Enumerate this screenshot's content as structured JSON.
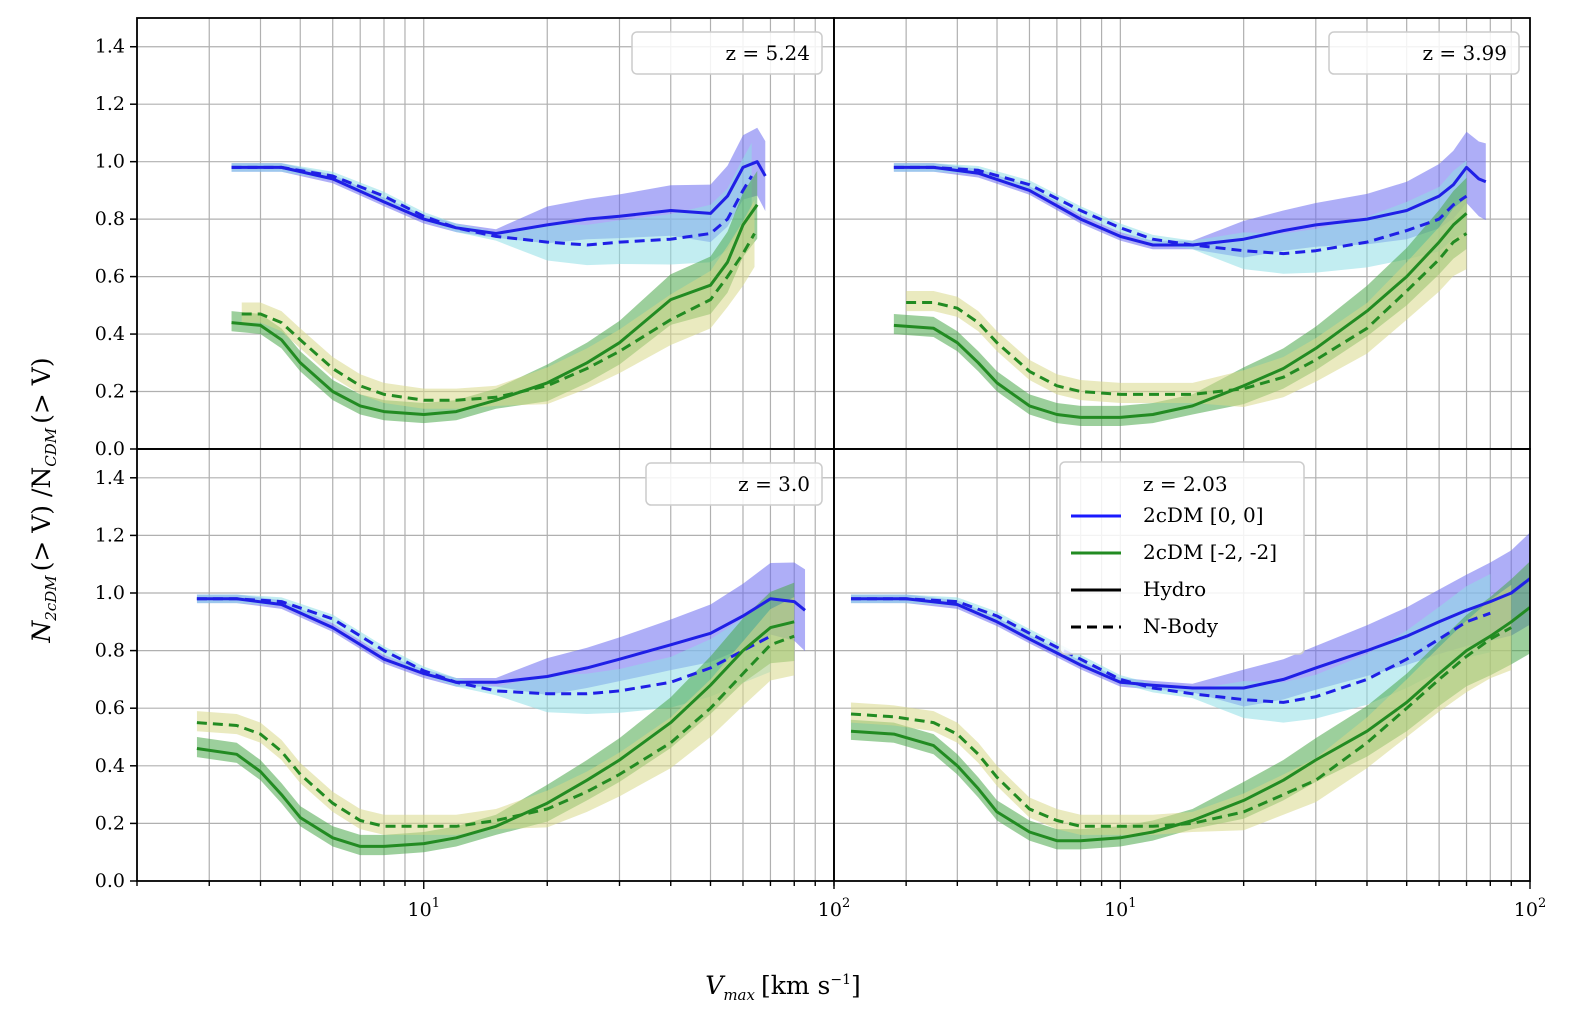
{
  "figure": {
    "xlabel": "V_max [km s⁻¹]",
    "xlabel_main": "V",
    "xlabel_sub": "max",
    "xlabel_unit": "[km s",
    "xlabel_exp": "−1",
    "xlabel_close": "]",
    "ylabel": "N_2cDM (> V) / N_CDM (> V)",
    "ylabel_a": "N",
    "ylabel_a_sub": "2cDM",
    "ylabel_mid": "(> V) /N",
    "ylabel_b_sub": "CDM",
    "ylabel_end": "(> V)"
  },
  "legend": {
    "title": "z = 2.03",
    "entries": [
      {
        "label": "2cDM [0, 0]",
        "color": "#1a1aff",
        "style": "solid"
      },
      {
        "label": "2cDM [-2, -2]",
        "color": "#228b22",
        "style": "solid"
      },
      {
        "label": "Hydro",
        "color": "#000000",
        "style": "solid"
      },
      {
        "label": "N-Body",
        "color": "#000000",
        "style": "dashed"
      }
    ]
  },
  "colors": {
    "blue": "#1f1fe6",
    "blue_band": "#6b6bf0",
    "cyan_band": "#8fdfe6",
    "green": "#228b22",
    "green_band": "#4aa84a",
    "olive_band": "#d8d88a",
    "grid": "#b0b0b0"
  },
  "chart_data": [
    {
      "type": "line",
      "panel": "top-left",
      "label": "z = 5.24",
      "xscale": "log",
      "xlim": [
        2,
        100
      ],
      "ylim": [
        0.0,
        1.5
      ],
      "xticks": [
        "10^1",
        "10^2"
      ],
      "yticks": [
        "0.0",
        "0.2",
        "0.4",
        "0.6",
        "0.8",
        "1.0",
        "1.2",
        "1.4"
      ],
      "series": [
        {
          "name": "2cDM [0, 0] Hydro",
          "color": "#1f1fe6",
          "dash": false,
          "x": [
            3.4,
            4.5,
            6,
            8,
            10,
            12,
            15,
            20,
            25,
            30,
            40,
            50,
            55,
            60,
            65,
            68
          ],
          "y": [
            0.98,
            0.98,
            0.94,
            0.86,
            0.8,
            0.77,
            0.75,
            0.78,
            0.8,
            0.81,
            0.83,
            0.82,
            0.88,
            0.98,
            1.0,
            0.95
          ]
        },
        {
          "name": "2cDM [0, 0] N-Body",
          "color": "#1f1fe6",
          "dash": true,
          "x": [
            3.4,
            4.5,
            6,
            8,
            10,
            12,
            15,
            20,
            25,
            30,
            40,
            50,
            55,
            60,
            63
          ],
          "y": [
            0.98,
            0.98,
            0.95,
            0.88,
            0.81,
            0.77,
            0.74,
            0.72,
            0.71,
            0.72,
            0.73,
            0.75,
            0.8,
            0.9,
            0.95
          ]
        },
        {
          "name": "2cDM [-2, -2] Hydro",
          "color": "#228b22",
          "dash": false,
          "x": [
            3.4,
            4,
            4.5,
            5,
            6,
            7,
            8,
            10,
            12,
            15,
            20,
            25,
            30,
            40,
            50,
            55,
            60,
            65
          ],
          "y": [
            0.44,
            0.43,
            0.38,
            0.3,
            0.2,
            0.15,
            0.13,
            0.12,
            0.13,
            0.17,
            0.23,
            0.3,
            0.37,
            0.52,
            0.57,
            0.65,
            0.78,
            0.85
          ]
        },
        {
          "name": "2cDM [-2, -2] N-Body",
          "color": "#228b22",
          "dash": true,
          "x": [
            3.6,
            4,
            4.5,
            5,
            6,
            7,
            8,
            10,
            12,
            15,
            20,
            25,
            30,
            40,
            50,
            55,
            60,
            64
          ],
          "y": [
            0.47,
            0.47,
            0.44,
            0.38,
            0.28,
            0.22,
            0.19,
            0.17,
            0.17,
            0.18,
            0.22,
            0.28,
            0.34,
            0.45,
            0.52,
            0.6,
            0.68,
            0.75
          ]
        }
      ]
    },
    {
      "type": "line",
      "panel": "top-right",
      "label": "z = 3.99",
      "xscale": "log",
      "xlim": [
        2,
        100
      ],
      "ylim": [
        0.0,
        1.5
      ],
      "xticks": [
        "10^1",
        "10^2"
      ],
      "yticks": [],
      "series": [
        {
          "name": "2cDM [0, 0] Hydro",
          "color": "#1f1fe6",
          "dash": false,
          "x": [
            2.8,
            3.5,
            4.5,
            6,
            8,
            10,
            12,
            15,
            20,
            25,
            30,
            40,
            50,
            60,
            65,
            70,
            75,
            78
          ],
          "y": [
            0.98,
            0.98,
            0.96,
            0.9,
            0.8,
            0.74,
            0.71,
            0.71,
            0.73,
            0.76,
            0.78,
            0.8,
            0.83,
            0.88,
            0.92,
            0.98,
            0.94,
            0.93
          ]
        },
        {
          "name": "2cDM [0, 0] N-Body",
          "color": "#1f1fe6",
          "dash": true,
          "x": [
            2.8,
            3.5,
            4.5,
            6,
            8,
            10,
            12,
            15,
            20,
            25,
            30,
            40,
            50,
            60,
            65,
            70
          ],
          "y": [
            0.98,
            0.98,
            0.97,
            0.92,
            0.83,
            0.77,
            0.73,
            0.71,
            0.69,
            0.68,
            0.69,
            0.72,
            0.76,
            0.8,
            0.85,
            0.88
          ]
        },
        {
          "name": "2cDM [-2, -2] Hydro",
          "color": "#228b22",
          "dash": false,
          "x": [
            2.8,
            3.5,
            4,
            4.5,
            5,
            6,
            7,
            8,
            10,
            12,
            15,
            20,
            25,
            30,
            40,
            50,
            60,
            65,
            70
          ],
          "y": [
            0.43,
            0.42,
            0.37,
            0.3,
            0.23,
            0.15,
            0.12,
            0.11,
            0.11,
            0.12,
            0.15,
            0.22,
            0.28,
            0.35,
            0.48,
            0.6,
            0.72,
            0.78,
            0.82
          ]
        },
        {
          "name": "2cDM [-2, -2] N-Body",
          "color": "#228b22",
          "dash": true,
          "x": [
            3,
            3.5,
            4,
            4.5,
            5,
            6,
            7,
            8,
            10,
            12,
            15,
            20,
            25,
            30,
            40,
            50,
            60,
            65,
            70
          ],
          "y": [
            0.51,
            0.51,
            0.49,
            0.44,
            0.37,
            0.27,
            0.22,
            0.2,
            0.19,
            0.19,
            0.19,
            0.21,
            0.25,
            0.31,
            0.42,
            0.55,
            0.66,
            0.72,
            0.75
          ]
        }
      ]
    },
    {
      "type": "line",
      "panel": "bottom-left",
      "label": "z = 3.0",
      "xscale": "log",
      "xlim": [
        2,
        100
      ],
      "ylim": [
        0.0,
        1.5
      ],
      "xticks": [
        "10^1",
        "10^2"
      ],
      "yticks": [
        "0.0",
        "0.2",
        "0.4",
        "0.6",
        "0.8",
        "1.0",
        "1.2",
        "1.4"
      ],
      "series": [
        {
          "name": "2cDM [0, 0] Hydro",
          "color": "#1f1fe6",
          "dash": false,
          "x": [
            2.8,
            3.5,
            4.5,
            6,
            8,
            10,
            12,
            15,
            20,
            25,
            30,
            40,
            50,
            60,
            70,
            80,
            85
          ],
          "y": [
            0.98,
            0.98,
            0.96,
            0.88,
            0.77,
            0.72,
            0.69,
            0.69,
            0.71,
            0.74,
            0.77,
            0.82,
            0.86,
            0.92,
            0.98,
            0.97,
            0.94
          ]
        },
        {
          "name": "2cDM [0, 0] N-Body",
          "color": "#1f1fe6",
          "dash": true,
          "x": [
            2.8,
            3.5,
            4.5,
            6,
            8,
            10,
            12,
            15,
            20,
            25,
            30,
            40,
            50,
            60,
            70
          ],
          "y": [
            0.98,
            0.98,
            0.97,
            0.91,
            0.8,
            0.73,
            0.69,
            0.66,
            0.65,
            0.65,
            0.66,
            0.69,
            0.74,
            0.8,
            0.85
          ]
        },
        {
          "name": "2cDM [-2, -2] Hydro",
          "color": "#228b22",
          "dash": false,
          "x": [
            2.8,
            3.5,
            4,
            4.5,
            5,
            6,
            7,
            8,
            10,
            12,
            15,
            20,
            25,
            30,
            40,
            50,
            60,
            70,
            80
          ],
          "y": [
            0.46,
            0.44,
            0.38,
            0.3,
            0.22,
            0.15,
            0.12,
            0.12,
            0.13,
            0.15,
            0.19,
            0.27,
            0.35,
            0.42,
            0.55,
            0.68,
            0.8,
            0.88,
            0.9
          ]
        },
        {
          "name": "2cDM [-2, -2] N-Body",
          "color": "#228b22",
          "dash": true,
          "x": [
            2.8,
            3.5,
            4,
            4.5,
            5,
            6,
            7,
            8,
            10,
            12,
            15,
            20,
            25,
            30,
            40,
            50,
            60,
            70,
            80
          ],
          "y": [
            0.55,
            0.54,
            0.51,
            0.45,
            0.37,
            0.27,
            0.21,
            0.19,
            0.19,
            0.19,
            0.21,
            0.25,
            0.31,
            0.37,
            0.48,
            0.6,
            0.72,
            0.82,
            0.85
          ]
        }
      ]
    },
    {
      "type": "line",
      "panel": "bottom-right",
      "label": "z = 2.03",
      "xscale": "log",
      "xlim": [
        2,
        100
      ],
      "ylim": [
        0.0,
        1.5
      ],
      "xticks": [
        "10^1",
        "10^2"
      ],
      "yticks": [],
      "series": [
        {
          "name": "2cDM [0, 0] Hydro",
          "color": "#1f1fe6",
          "dash": false,
          "x": [
            2.2,
            3,
            4,
            5,
            6,
            8,
            10,
            12,
            15,
            20,
            25,
            30,
            40,
            50,
            60,
            70,
            80,
            90,
            100
          ],
          "y": [
            0.98,
            0.98,
            0.96,
            0.9,
            0.84,
            0.75,
            0.69,
            0.68,
            0.67,
            0.67,
            0.7,
            0.74,
            0.8,
            0.85,
            0.9,
            0.94,
            0.97,
            1.0,
            1.05
          ]
        },
        {
          "name": "2cDM [0, 0] N-Body",
          "color": "#1f1fe6",
          "dash": true,
          "x": [
            2.2,
            3,
            4,
            5,
            6,
            8,
            10,
            12,
            15,
            20,
            25,
            30,
            40,
            50,
            60,
            70,
            80
          ],
          "y": [
            0.98,
            0.98,
            0.97,
            0.92,
            0.86,
            0.77,
            0.7,
            0.67,
            0.65,
            0.63,
            0.62,
            0.64,
            0.7,
            0.77,
            0.84,
            0.9,
            0.93
          ]
        },
        {
          "name": "2cDM [-2, -2] Hydro",
          "color": "#228b22",
          "dash": false,
          "x": [
            2.2,
            2.8,
            3.5,
            4,
            4.5,
            5,
            6,
            7,
            8,
            10,
            12,
            15,
            20,
            25,
            30,
            40,
            50,
            60,
            70,
            80,
            90,
            100
          ],
          "y": [
            0.52,
            0.51,
            0.47,
            0.4,
            0.32,
            0.24,
            0.17,
            0.14,
            0.14,
            0.15,
            0.17,
            0.21,
            0.28,
            0.35,
            0.42,
            0.52,
            0.62,
            0.72,
            0.8,
            0.85,
            0.9,
            0.95
          ]
        },
        {
          "name": "2cDM [-2, -2] N-Body",
          "color": "#228b22",
          "dash": true,
          "x": [
            2.2,
            2.8,
            3.5,
            4,
            4.5,
            5,
            6,
            7,
            8,
            10,
            12,
            15,
            20,
            25,
            30,
            40,
            50,
            60,
            70,
            80,
            90
          ],
          "y": [
            0.58,
            0.57,
            0.55,
            0.51,
            0.44,
            0.36,
            0.25,
            0.21,
            0.19,
            0.19,
            0.19,
            0.2,
            0.24,
            0.3,
            0.35,
            0.48,
            0.6,
            0.7,
            0.78,
            0.84,
            0.88
          ]
        }
      ]
    }
  ]
}
